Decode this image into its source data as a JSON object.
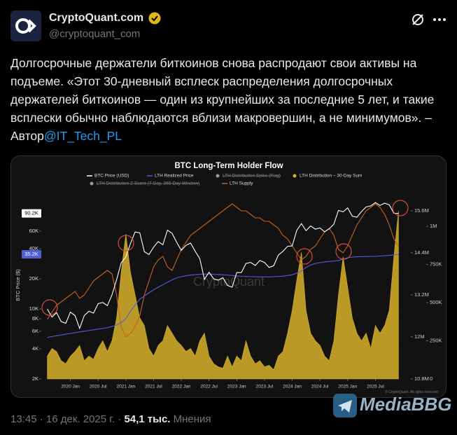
{
  "header": {
    "name": "CryptoQuant.com",
    "handle": "@cryptoquant_com"
  },
  "tweet": {
    "text": "Долгосрочные держатели биткоинов снова распродают свои активы на подъеме. «Этот 30-дневный всплеск распределения долгосрочных держателей биткоинов — один из крупнейших за последние 5 лет, и такие всплески обычно наблюдаются вблизи макровершин, а не минимумов». – Автор",
    "link": "@IT_Tech_PL"
  },
  "chart_data": {
    "type": "line",
    "title": "BTC Long-Term Holder Flow",
    "ylabel": "BTC Price ($)",
    "watermark": "CryptoQuant",
    "copyright": "© CryptoQuant. All rights reserved",
    "log_y": true,
    "ylim": [
      2000,
      150000
    ],
    "yticks": [
      {
        "value": 2000,
        "label": "2K"
      },
      {
        "value": 4000,
        "label": "4K"
      },
      {
        "value": 6000,
        "label": "6K"
      },
      {
        "value": 8000,
        "label": "8K"
      },
      {
        "value": 10000,
        "label": "10K"
      },
      {
        "value": 20000,
        "label": "20K"
      },
      {
        "value": 40000,
        "label": "40K"
      },
      {
        "value": 60000,
        "label": "60K"
      }
    ],
    "y2lim": [
      10800000,
      16160000
    ],
    "y2ticks": [
      {
        "value": 10800000,
        "label": "10.8M"
      },
      {
        "value": 12000000,
        "label": "12M"
      },
      {
        "value": 13200000,
        "label": "13.2M"
      },
      {
        "value": 14400000,
        "label": "14.4M"
      },
      {
        "value": 15600000,
        "label": "15.6M"
      }
    ],
    "y3lim": [
      0,
      1230000
    ],
    "y3ticks": [
      0,
      {
        "value": 250000,
        "label": "250K"
      },
      {
        "value": 500000,
        "label": "500K"
      },
      {
        "value": 750000,
        "label": "750K"
      },
      {
        "value": 1000000,
        "label": "1M"
      }
    ],
    "xlim": [
      "2019-07",
      "2026-01"
    ],
    "xticks": [
      {
        "value": "2020-01",
        "label": "2020 Jan"
      },
      {
        "value": "2020-07",
        "label": "2020 Jul"
      },
      {
        "value": "2021-01",
        "label": "2021 Jan"
      },
      {
        "value": "2021-07",
        "label": "2021 Jul"
      },
      {
        "value": "2022-01",
        "label": "2022 Jan"
      },
      {
        "value": "2022-07",
        "label": "2022 Jul"
      },
      {
        "value": "2023-01",
        "label": "2023 Jan"
      },
      {
        "value": "2023-07",
        "label": "2023 Jul"
      },
      {
        "value": "2024-01",
        "label": "2024 Jan"
      },
      {
        "value": "2024-07",
        "label": "2024 Jul"
      },
      {
        "value": "2025-01",
        "label": "2025 Jan"
      },
      {
        "value": "2025-07",
        "label": "2025 Jul"
      }
    ],
    "x": [
      "2019-08",
      "2019-09",
      "2019-10",
      "2019-11",
      "2019-12",
      "2020-01",
      "2020-02",
      "2020-03",
      "2020-04",
      "2020-05",
      "2020-06",
      "2020-07",
      "2020-08",
      "2020-09",
      "2020-10",
      "2020-11",
      "2020-12",
      "2021-01",
      "2021-02",
      "2021-03",
      "2021-04",
      "2021-05",
      "2021-06",
      "2021-07",
      "2021-08",
      "2021-09",
      "2021-10",
      "2021-11",
      "2021-12",
      "2022-01",
      "2022-02",
      "2022-03",
      "2022-04",
      "2022-05",
      "2022-06",
      "2022-07",
      "2022-08",
      "2022-09",
      "2022-10",
      "2022-11",
      "2022-12",
      "2023-01",
      "2023-02",
      "2023-03",
      "2023-04",
      "2023-05",
      "2023-06",
      "2023-07",
      "2023-08",
      "2023-09",
      "2023-10",
      "2023-11",
      "2023-12",
      "2024-01",
      "2024-02",
      "2024-03",
      "2024-04",
      "2024-05",
      "2024-06",
      "2024-07",
      "2024-08",
      "2024-09",
      "2024-10",
      "2024-11",
      "2024-12",
      "2025-01",
      "2025-02",
      "2025-03",
      "2025-04",
      "2025-05",
      "2025-06",
      "2025-07",
      "2025-08",
      "2025-09",
      "2025-10",
      "2025-11",
      "2025-12"
    ],
    "series": [
      {
        "name": "BTC Price (USD)",
        "color": "#ffffff",
        "axis": "y",
        "last_label": "90.2K",
        "label_bg": "#ffffff",
        "label_color": "#000000",
        "values": [
          10000,
          8300,
          9200,
          7500,
          7200,
          9300,
          8600,
          6400,
          8600,
          9500,
          9100,
          11300,
          11600,
          10800,
          13800,
          19600,
          29000,
          33100,
          45000,
          58800,
          57700,
          37300,
          35000,
          41500,
          47100,
          43800,
          61300,
          57000,
          46300,
          38500,
          43200,
          45500,
          37700,
          31800,
          19800,
          23300,
          20000,
          19400,
          20500,
          17200,
          16500,
          23100,
          23100,
          28500,
          29200,
          27200,
          30500,
          29200,
          26000,
          27000,
          34500,
          37700,
          42300,
          42600,
          61100,
          71300,
          60600,
          67500,
          62700,
          64600,
          59000,
          63300,
          70200,
          96400,
          93400,
          102400,
          84400,
          82500,
          94200,
          104600,
          107100,
          115700,
          108200,
          114000,
          109500,
          90400,
          90200
        ]
      },
      {
        "name": "LTH Realized Price",
        "color": "#4f5fd6",
        "axis": "y",
        "last_label": "35.2K",
        "label_bg": "#4f5fd6",
        "label_color": "#ffffff",
        "values": [
          5200,
          5300,
          5400,
          5500,
          5600,
          5700,
          5800,
          5900,
          6000,
          6100,
          6200,
          6300,
          6400,
          6500,
          6700,
          6900,
          7300,
          8000,
          9500,
          11000,
          12500,
          13500,
          14500,
          15500,
          16500,
          17500,
          18500,
          19500,
          20500,
          21000,
          21500,
          21800,
          22000,
          22200,
          22300,
          22300,
          22200,
          22100,
          22000,
          21800,
          21600,
          21400,
          21200,
          21100,
          21000,
          21000,
          20900,
          20900,
          20900,
          21000,
          21100,
          21300,
          21600,
          22000,
          22800,
          24000,
          26000,
          27500,
          28500,
          29000,
          29500,
          29800,
          30100,
          30500,
          31500,
          32500,
          33000,
          33200,
          33300,
          33400,
          33500,
          33600,
          33800,
          34000,
          34300,
          34800,
          35200
        ]
      },
      {
        "name": "LTH Distribution Spike (Flag)",
        "color": "#9a9a9a",
        "visible": false
      },
      {
        "name": "LTH Distribution – 30-Day Sum",
        "color": "#d8b22c",
        "axis": "y3",
        "style": "area",
        "values": [
          150000,
          200000,
          180000,
          120000,
          100000,
          150000,
          180000,
          220000,
          120000,
          150000,
          130000,
          200000,
          250000,
          180000,
          250000,
          400000,
          700000,
          950000,
          700000,
          550000,
          400000,
          350000,
          200000,
          150000,
          220000,
          250000,
          350000,
          300000,
          250000,
          220000,
          180000,
          200000,
          150000,
          250000,
          300000,
          150000,
          100000,
          80000,
          70000,
          150000,
          80000,
          150000,
          120000,
          250000,
          150000,
          100000,
          120000,
          80000,
          90000,
          60000,
          150000,
          180000,
          300000,
          450000,
          650000,
          830000,
          450000,
          300000,
          250000,
          220000,
          150000,
          120000,
          250000,
          550000,
          800000,
          600000,
          400000,
          300000,
          250000,
          300000,
          200000,
          350000,
          300000,
          350000,
          450000,
          800000,
          1100000
        ]
      },
      {
        "name": "LTH Distribution Z-Score (7-Day, 365-Day Window)",
        "color": "#9a9a9a",
        "visible": false
      },
      {
        "name": "LTH Supply",
        "color": "#c8621e",
        "axis": "y2",
        "values": [
          12500000,
          12700000,
          12900000,
          13000000,
          13100000,
          13200000,
          13300000,
          13100000,
          13200000,
          13400000,
          13600000,
          13700000,
          13800000,
          13900000,
          13800000,
          13200000,
          12300000,
          12000000,
          12100000,
          12300000,
          12600000,
          13200000,
          13600000,
          14000000,
          14200000,
          14300000,
          14000000,
          13900000,
          14200000,
          14500000,
          14700000,
          14900000,
          15000000,
          15100000,
          15200000,
          15300000,
          15400000,
          15500000,
          15600000,
          15700000,
          15800000,
          15700000,
          15600000,
          15600000,
          15500000,
          15400000,
          15400000,
          15300000,
          15300000,
          15200000,
          15100000,
          14900000,
          14800000,
          14600000,
          14400000,
          14200000,
          14300000,
          14500000,
          14600000,
          14800000,
          15000000,
          15100000,
          14900000,
          14500000,
          14400000,
          14600000,
          14900000,
          15200000,
          15400000,
          15600000,
          15700000,
          15800000,
          15700000,
          15500000,
          15200000,
          14800000,
          14600000
        ]
      }
    ]
  },
  "footer": {
    "time": "13:45",
    "separator": "·",
    "date": "16 дек. 2025 г.",
    "views": "54,1 тыс.",
    "views_label": "Мнения"
  },
  "watermark": "MediaBBG"
}
